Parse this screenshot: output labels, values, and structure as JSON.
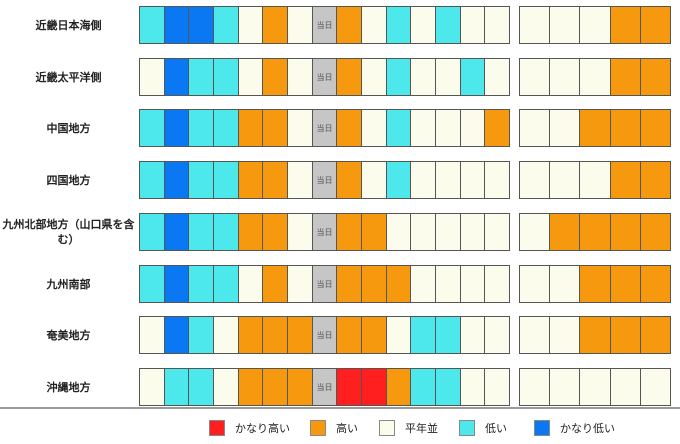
{
  "colors": {
    "much_high": "#ff1f1f",
    "high": "#f6990f",
    "normal": "#fcfcec",
    "low": "#4de8ec",
    "much_low": "#0a78f2",
    "today": "#c6c6c6"
  },
  "today_label": "当日",
  "rows": [
    {
      "label": "近畿日本海側",
      "a": [
        "low",
        "much_low",
        "much_low",
        "low",
        "normal",
        "high",
        "normal",
        "today",
        "high",
        "normal",
        "low",
        "normal",
        "low",
        "normal",
        "normal"
      ],
      "b": [
        "normal",
        "normal",
        "normal",
        "high",
        "high"
      ]
    },
    {
      "label": "近畿太平洋側",
      "a": [
        "normal",
        "much_low",
        "low",
        "low",
        "normal",
        "high",
        "normal",
        "today",
        "high",
        "normal",
        "low",
        "normal",
        "normal",
        "low",
        "normal"
      ],
      "b": [
        "normal",
        "normal",
        "normal",
        "high",
        "high"
      ]
    },
    {
      "label": "中国地方",
      "a": [
        "low",
        "much_low",
        "low",
        "low",
        "high",
        "high",
        "normal",
        "today",
        "high",
        "normal",
        "low",
        "normal",
        "normal",
        "normal",
        "high"
      ],
      "b": [
        "normal",
        "normal",
        "high",
        "high",
        "high"
      ]
    },
    {
      "label": "四国地方",
      "a": [
        "low",
        "much_low",
        "low",
        "low",
        "high",
        "high",
        "normal",
        "today",
        "high",
        "normal",
        "low",
        "normal",
        "normal",
        "normal",
        "normal"
      ],
      "b": [
        "normal",
        "normal",
        "normal",
        "high",
        "high"
      ]
    },
    {
      "label": "九州北部地方（山口県を含む）",
      "a": [
        "low",
        "much_low",
        "low",
        "low",
        "high",
        "high",
        "normal",
        "today",
        "high",
        "high",
        "normal",
        "normal",
        "normal",
        "normal",
        "normal"
      ],
      "b": [
        "normal",
        "high",
        "high",
        "high",
        "high"
      ]
    },
    {
      "label": "九州南部",
      "a": [
        "low",
        "much_low",
        "low",
        "low",
        "normal",
        "high",
        "normal",
        "today",
        "high",
        "high",
        "high",
        "normal",
        "normal",
        "normal",
        "normal"
      ],
      "b": [
        "normal",
        "normal",
        "high",
        "high",
        "high"
      ]
    },
    {
      "label": "奄美地方",
      "a": [
        "normal",
        "much_low",
        "low",
        "normal",
        "high",
        "high",
        "high",
        "today",
        "high",
        "high",
        "normal",
        "low",
        "low",
        "normal",
        "normal"
      ],
      "b": [
        "normal",
        "normal",
        "high",
        "high",
        "high"
      ]
    },
    {
      "label": "沖縄地方",
      "a": [
        "normal",
        "low",
        "low",
        "normal",
        "high",
        "high",
        "high",
        "today",
        "much_high",
        "much_high",
        "high",
        "low",
        "low",
        "normal",
        "normal"
      ],
      "b": [
        "normal",
        "normal",
        "normal",
        "normal",
        "normal"
      ]
    }
  ],
  "legend": [
    {
      "key": "much_high",
      "label": "かなり高い"
    },
    {
      "key": "high",
      "label": "高い"
    },
    {
      "key": "normal",
      "label": "平年並"
    },
    {
      "key": "low",
      "label": "低い"
    },
    {
      "key": "much_low",
      "label": "かなり低い"
    }
  ]
}
